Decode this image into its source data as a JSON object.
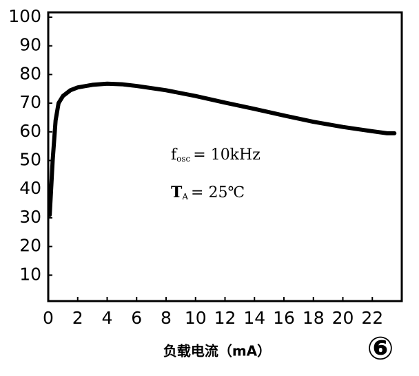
{
  "chart_data": {
    "type": "line",
    "x": [
      0.1,
      0.3,
      0.5,
      0.7,
      1.0,
      1.5,
      2,
      3,
      4,
      5,
      6,
      8,
      10,
      12,
      14,
      16,
      18,
      20,
      22,
      23,
      23.5
    ],
    "series": [
      {
        "color": "#000000",
        "values": [
          31,
          50,
          64,
          70,
          72.5,
          74.5,
          75.5,
          76.4,
          76.8,
          76.6,
          76,
          74.5,
          72.5,
          70.2,
          68,
          65.7,
          63.5,
          61.7,
          60.2,
          59.5,
          59.5
        ]
      }
    ],
    "xlim": [
      0,
      24
    ],
    "xticks": [
      0,
      2,
      4,
      6,
      8,
      10,
      12,
      14,
      16,
      18,
      20,
      22
    ],
    "ylim": [
      0,
      100
    ],
    "yticks": [
      10,
      20,
      30,
      40,
      50,
      60,
      70,
      80,
      90,
      100
    ],
    "annotations": [
      {
        "main": "f",
        "sub": "osc",
        "rest": "= 10kHz"
      },
      {
        "main": "T",
        "sub": "A",
        "rest": "= 25℃"
      }
    ],
    "xlabel": "负载电流（mA）",
    "figure_label": "⑥"
  }
}
